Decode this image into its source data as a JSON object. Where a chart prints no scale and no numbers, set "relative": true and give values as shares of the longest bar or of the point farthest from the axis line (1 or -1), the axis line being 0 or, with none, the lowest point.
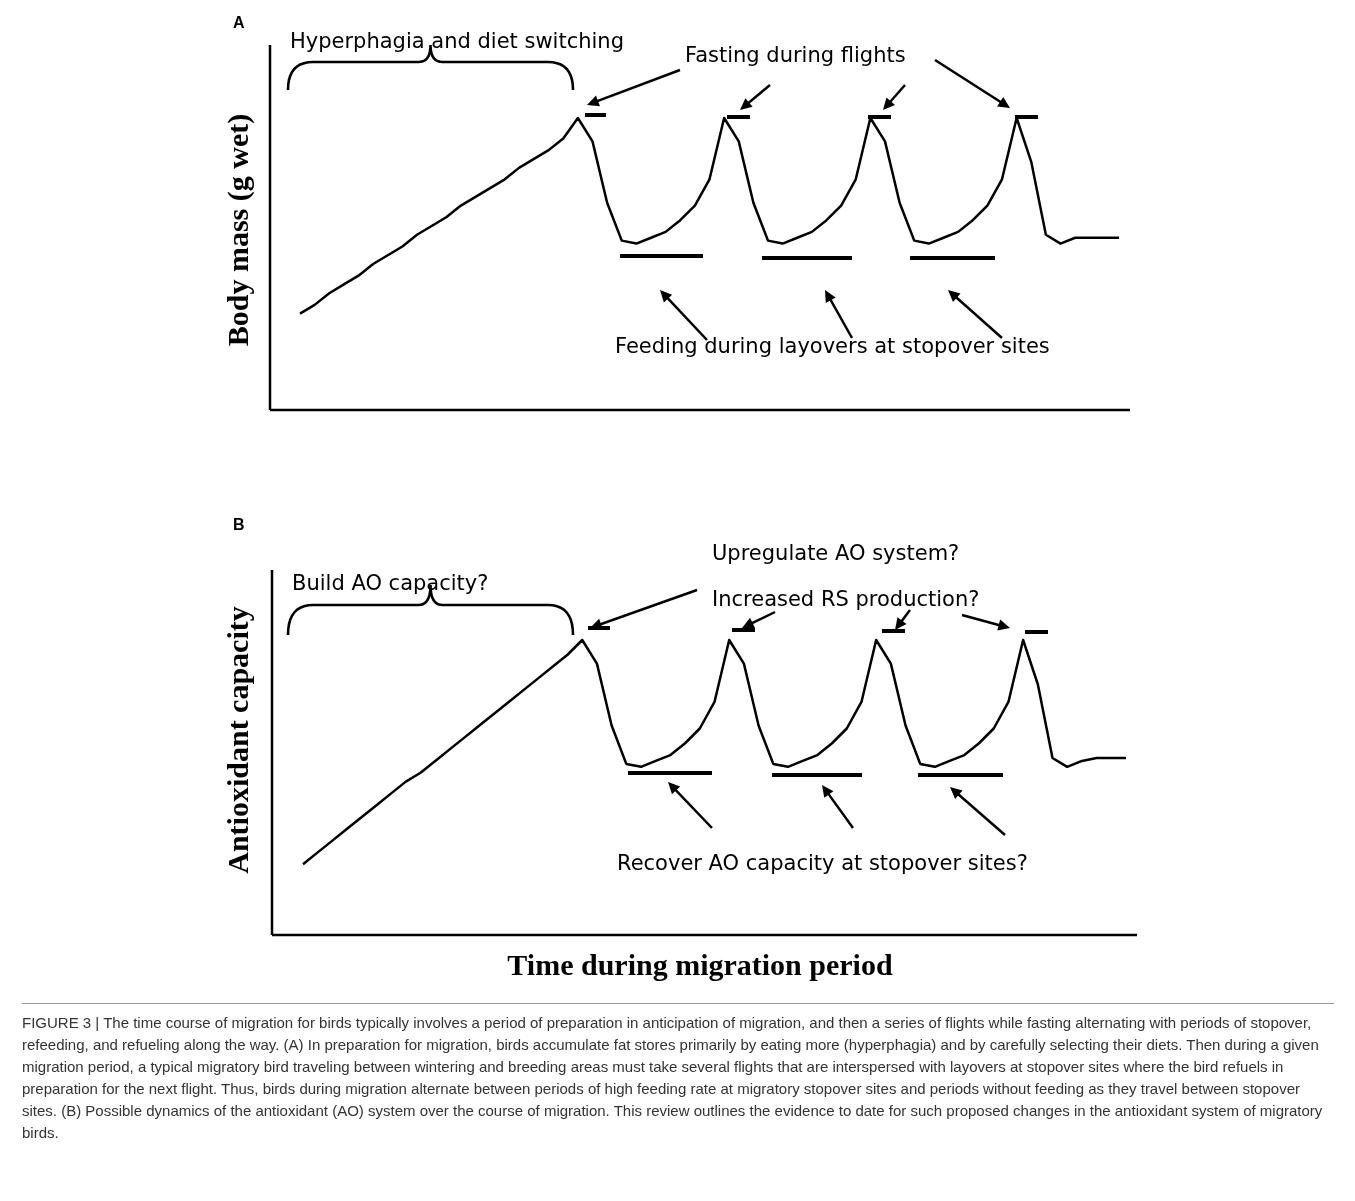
{
  "chart_data": [
    {
      "type": "line",
      "title": "A",
      "ylabel": "Body mass (g wet)",
      "relative": true,
      "color": "#000000",
      "annotations": [
        "Hyperphagia and diet switching",
        "Fasting during flights",
        "Feeding during layovers at stopover sites"
      ],
      "categories": [
        null,
        null,
        null,
        null,
        null,
        null,
        null,
        null,
        null,
        null,
        null,
        null,
        null,
        null,
        null,
        null,
        null,
        null,
        null,
        null,
        null,
        null,
        null,
        null,
        null,
        null,
        null,
        null,
        null,
        null,
        null,
        null,
        null,
        null,
        null,
        null,
        null,
        null,
        null,
        null,
        null,
        null,
        null,
        null,
        null,
        null,
        null,
        null,
        null,
        null,
        null,
        null,
        null,
        null,
        null,
        null,
        null
      ],
      "values": [
        0.33,
        0.36,
        0.4,
        0.43,
        0.46,
        0.5,
        0.53,
        0.56,
        0.6,
        0.63,
        0.66,
        0.7,
        0.73,
        0.76,
        0.79,
        0.83,
        0.86,
        0.89,
        0.93,
        1,
        0.92,
        0.71,
        0.58,
        0.57,
        0.59,
        0.61,
        0.65,
        0.7,
        0.79,
        1,
        0.92,
        0.71,
        0.58,
        0.57,
        0.59,
        0.61,
        0.65,
        0.7,
        0.79,
        1,
        0.92,
        0.71,
        0.58,
        0.57,
        0.59,
        0.61,
        0.65,
        0.7,
        0.79,
        1,
        0.85,
        0.6,
        0.57,
        0.59,
        0.59,
        0.59,
        0.59
      ]
    },
    {
      "type": "line",
      "title": "B",
      "ylabel": "Antioxidant capacity",
      "xlabel": "Time during migration period",
      "relative": true,
      "color": "#000000",
      "annotations": [
        "Build AO capacity?",
        "Upregulate AO system?",
        "Increased RS production?",
        "Recover AO capacity at stopover sites?",
        "FIGURE 3 | The time course of migration for birds typically involves a period of preparation in anticipation of migration, and then a series of flights while fasting alternating with periods of stopover, refeeding, and refueling along the way. (A) In preparation for migration, birds accumulate fat stores primarily by eating more (hyperphagia) and by carefully selecting their diets. Then during a given migration period, a typical migratory bird traveling between wintering and breeding areas must take several flights that are interspersed with layovers at stopover sites where the bird refuels in preparation for the next flight. Thus, birds during migration alternate between periods of high feeding rate at migratory stopover sites and periods without feeding as they travel between stopover sites. (B) Possible dynamics of the antioxidant (AO) system over the course of migration. This review outlines the evidence to date for such proposed changes in the antioxidant system of migratory birds."
      ],
      "categories": [
        null,
        null,
        null,
        null,
        null,
        null,
        null,
        null,
        null,
        null,
        null,
        null,
        null,
        null,
        null,
        null,
        null,
        null,
        null,
        null,
        null,
        null,
        null,
        null,
        null,
        null,
        null,
        null,
        null,
        null,
        null,
        null,
        null,
        null,
        null,
        null,
        null,
        null,
        null,
        null,
        null,
        null,
        null,
        null,
        null,
        null,
        null,
        null,
        null,
        null,
        null,
        null,
        null,
        null,
        null,
        null,
        null
      ],
      "values": [
        0.24,
        0.28,
        0.32,
        0.36,
        0.4,
        0.44,
        0.48,
        0.52,
        0.55,
        0.59,
        0.63,
        0.67,
        0.71,
        0.75,
        0.79,
        0.83,
        0.87,
        0.91,
        0.95,
        1,
        0.92,
        0.71,
        0.58,
        0.57,
        0.59,
        0.61,
        0.65,
        0.7,
        0.79,
        1,
        0.92,
        0.71,
        0.58,
        0.57,
        0.59,
        0.61,
        0.65,
        0.7,
        0.79,
        1,
        0.92,
        0.71,
        0.58,
        0.57,
        0.59,
        0.61,
        0.65,
        0.7,
        0.79,
        1,
        0.85,
        0.6,
        0.57,
        0.59,
        0.6,
        0.6,
        0.6
      ]
    }
  ]
}
